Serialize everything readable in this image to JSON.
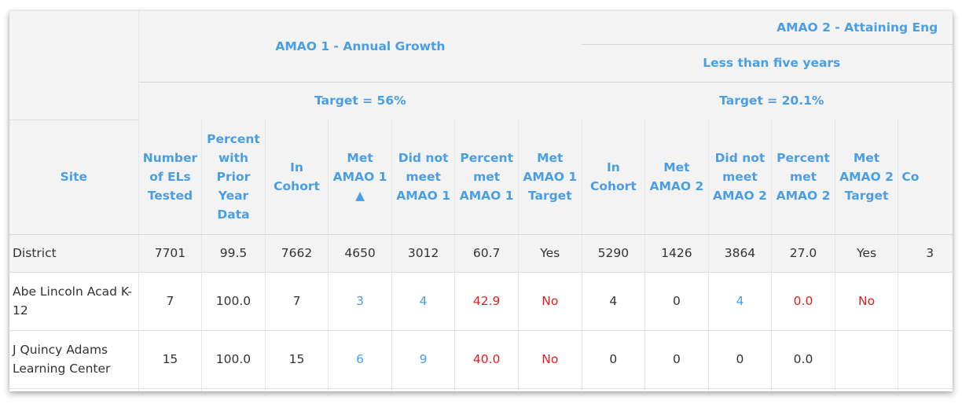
{
  "groups": {
    "amao1": {
      "title": "AMAO 1 - Annual Growth",
      "target": "Target = 56%"
    },
    "amao2": {
      "title": "AMAO 2 - Attaining Eng",
      "subtitle": "Less than five years",
      "target": "Target = 20.1%"
    }
  },
  "columns": [
    "Site",
    "Number of ELs Tested",
    "Percent with Prior Year Data",
    "In Cohort",
    "Met AMAO 1 ▲",
    "Did not meet AMAO 1",
    "Percent met AMAO 1",
    "Met AMAO 1 Target",
    "In Cohort",
    "Met AMAO 2",
    "Did not meet AMAO 2",
    "Percent met AMAO 2",
    "Met AMAO 2 Target",
    "Co"
  ],
  "rows": [
    [
      "District",
      "7701",
      "99.5",
      "7662",
      "4650",
      "3012",
      "60.7",
      "Yes",
      "5290",
      "1426",
      "3864",
      "27.0",
      "Yes",
      "3"
    ],
    [
      "Abe Lincoln Acad K-12",
      "7",
      "100.0",
      "7",
      "3",
      "4",
      "42.9",
      "No",
      "4",
      "0",
      "4",
      "0.0",
      "No",
      ""
    ],
    [
      "J Quincy Adams Learning Center",
      "15",
      "100.0",
      "15",
      "6",
      "9",
      "40.0",
      "No",
      "0",
      "0",
      "0",
      "0.0",
      "",
      ""
    ]
  ],
  "colors": {
    "link": "#4a9ee6",
    "alert": "#e02020",
    "header_bg": "#f3f3f3"
  }
}
